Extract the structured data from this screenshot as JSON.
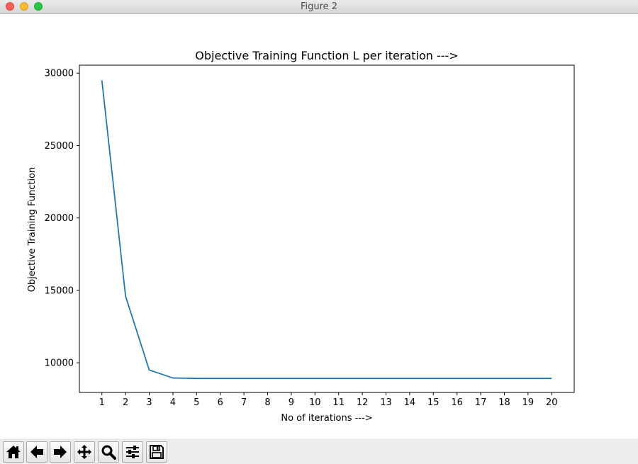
{
  "window": {
    "title": "Figure 2"
  },
  "toolbar": {
    "buttons": [
      {
        "name": "home-button",
        "icon": "home-icon"
      },
      {
        "name": "back-button",
        "icon": "arrow-left-icon"
      },
      {
        "name": "forward-button",
        "icon": "arrow-right-icon"
      },
      {
        "name": "pan-button",
        "icon": "move-icon"
      },
      {
        "name": "zoom-button",
        "icon": "magnifier-icon"
      },
      {
        "name": "configure-subplots-button",
        "icon": "sliders-icon"
      },
      {
        "name": "save-button",
        "icon": "floppy-disk-icon"
      }
    ]
  },
  "colors": {
    "line": "#1f77b4",
    "axes": "#000000",
    "background": "#ffffff"
  },
  "chart_data": {
    "type": "line",
    "title": "Objective Training Function L per iteration --->",
    "xlabel": "No of iterations --->",
    "ylabel": "Objective Training Function",
    "xlim": [
      0.05,
      20.95
    ],
    "ylim": [
      7950,
      30550
    ],
    "xticks": [
      1,
      2,
      3,
      4,
      5,
      6,
      7,
      8,
      9,
      10,
      11,
      12,
      13,
      14,
      15,
      16,
      17,
      18,
      19,
      20
    ],
    "xtick_labels": [
      "1",
      "2",
      "3",
      "4",
      "5",
      "6",
      "7",
      "8",
      "9",
      "10",
      "11",
      "12",
      "13",
      "14",
      "15",
      "16",
      "17",
      "18",
      "19",
      "20"
    ],
    "yticks": [
      10000,
      15000,
      20000,
      25000,
      30000
    ],
    "ytick_labels": [
      "10000",
      "15000",
      "20000",
      "25000",
      "30000"
    ],
    "grid": false,
    "legend": false,
    "series": [
      {
        "x": [
          1,
          2,
          3,
          4,
          5,
          6,
          7,
          8,
          9,
          10,
          11,
          12,
          13,
          14,
          15,
          16,
          17,
          18,
          19,
          20
        ],
        "y": [
          29500,
          14600,
          9500,
          8950,
          8920,
          8920,
          8920,
          8920,
          8920,
          8920,
          8920,
          8920,
          8920,
          8920,
          8920,
          8920,
          8920,
          8920,
          8920,
          8920
        ]
      }
    ]
  }
}
